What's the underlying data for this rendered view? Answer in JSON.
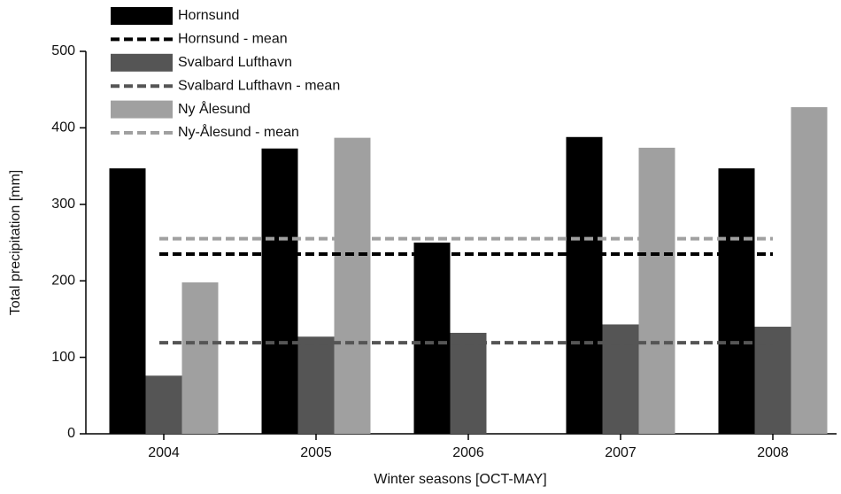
{
  "chart_data": {
    "type": "bar",
    "x_label": "Winter seasons [OCT-MAY]",
    "y_label": "Total precipitation [mm]",
    "categories": [
      "2004",
      "2005",
      "2006",
      "2007",
      "2008"
    ],
    "series": [
      {
        "name": "Hornsund",
        "color": "#000000",
        "values": [
          347,
          373,
          250,
          388,
          347
        ],
        "mean_name": "Hornsund - mean",
        "mean": 235
      },
      {
        "name": "Svalbard Lufthavn",
        "color": "#555555",
        "values": [
          76,
          127,
          132,
          143,
          140
        ],
        "mean_name": "Svalbard Lufthavn - mean",
        "mean": 119
      },
      {
        "name": "Ny Ålesund",
        "color": "#a0a0a0",
        "values": [
          198,
          387,
          null,
          374,
          427
        ],
        "mean_name": "Ny-Ålesund - mean",
        "mean": 255
      }
    ],
    "ylim": [
      0,
      500
    ],
    "yticks": [
      0,
      100,
      200,
      300,
      400,
      500
    ]
  }
}
